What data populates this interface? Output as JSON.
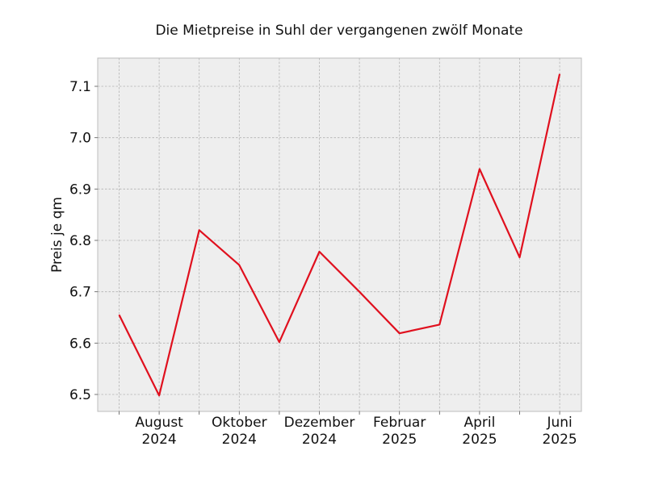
{
  "chart_data": {
    "type": "line",
    "title": "Die Mietpreise in Suhl der vergangenen zwölf Monate",
    "xlabel": "",
    "ylabel": "Preis je qm",
    "x": [
      "2024-07",
      "2024-08",
      "2024-09",
      "2024-10",
      "2024-11",
      "2024-12",
      "2025-01",
      "2025-02",
      "2025-03",
      "2025-04",
      "2025-05",
      "2025-06"
    ],
    "series": [
      {
        "values": [
          6.655,
          6.498,
          6.82,
          6.752,
          6.602,
          6.778,
          6.7,
          6.619,
          6.636,
          6.939,
          6.767,
          7.124
        ],
        "color": "#e0101e"
      }
    ],
    "xticks": [
      {
        "x": "2024-08",
        "line1": "August",
        "line2": "2024"
      },
      {
        "x": "2024-10",
        "line1": "Oktober",
        "line2": "2024"
      },
      {
        "x": "2024-12",
        "line1": "Dezember",
        "line2": "2024"
      },
      {
        "x": "2025-02",
        "line1": "Februar",
        "line2": "2025"
      },
      {
        "x": "2025-04",
        "line1": "April",
        "line2": "2025"
      },
      {
        "x": "2025-06",
        "line1": "Juni",
        "line2": "2025"
      }
    ],
    "yticks": [
      "6.5",
      "6.6",
      "6.7",
      "6.8",
      "6.9",
      "7.0",
      "7.1"
    ],
    "ylim": [
      6.467,
      7.155
    ],
    "grid": true,
    "background_color": "#eeeeee"
  }
}
